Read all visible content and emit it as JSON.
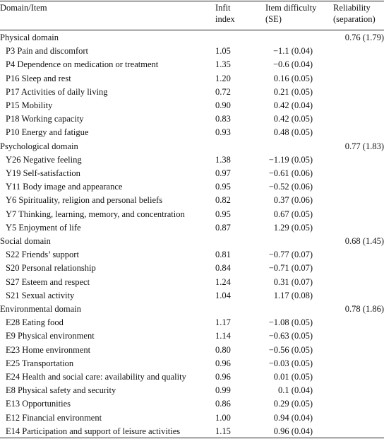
{
  "table": {
    "columns": [
      [
        "Domain/Item"
      ],
      [
        "Infit",
        "index"
      ],
      [
        "Item difficulty",
        "(SE)"
      ],
      [
        "Reliability",
        "(separation)"
      ]
    ],
    "sections": [
      {
        "name": "Physical domain",
        "reliability": "0.76 (1.79)",
        "items": [
          [
            "P3 Pain and discomfort",
            "1.05",
            "−1.1 (0.04)"
          ],
          [
            "P4 Dependence on medication or treatment",
            "1.35",
            "−0.6 (0.04)"
          ],
          [
            "P16 Sleep and rest",
            "1.20",
            "0.16 (0.05)"
          ],
          [
            "P17 Activities of daily living",
            "0.72",
            "0.21 (0.05)"
          ],
          [
            "P15 Mobility",
            "0.90",
            "0.42 (0.04)"
          ],
          [
            "P18 Working capacity",
            "0.83",
            "0.42 (0.05)"
          ],
          [
            "P10 Energy and fatigue",
            "0.93",
            "0.48 (0.05)"
          ]
        ]
      },
      {
        "name": "Psychological domain",
        "reliability": "0.77 (1.83)",
        "items": [
          [
            "Y26 Negative feeling",
            "1.38",
            "−1.19 (0.05)"
          ],
          [
            "Y19 Self-satisfaction",
            "0.97",
            "−0.61 (0.06)"
          ],
          [
            "Y11 Body image and appearance",
            "0.95",
            "−0.52 (0.06)"
          ],
          [
            "Y6 Spirituality, religion and personal beliefs",
            "0.82",
            "0.37 (0.06)"
          ],
          [
            "Y7 Thinking, learning, memory, and concentration",
            "0.95",
            "0.67 (0.05)"
          ],
          [
            "Y5 Enjoyment of life",
            "0.87",
            "1.29 (0.05)"
          ]
        ]
      },
      {
        "name": "Social domain",
        "reliability": "0.68 (1.45)",
        "items": [
          [
            "S22 Friends’ support",
            "0.81",
            "−0.77 (0.07)"
          ],
          [
            "S20 Personal relationship",
            "0.84",
            "−0.71 (0.07)"
          ],
          [
            "S27 Esteem and respect",
            "1.24",
            "0.31 (0.07)"
          ],
          [
            "S21 Sexual activity",
            "1.04",
            "1.17 (0.08)"
          ]
        ]
      },
      {
        "name": "Environmental domain",
        "reliability": "0.78 (1.86)",
        "items": [
          [
            "E28 Eating food",
            "1.17",
            "−1.08 (0.05)"
          ],
          [
            "E9 Physical environment",
            "1.14",
            "−0.63 (0.05)"
          ],
          [
            "E23 Home environment",
            "0.80",
            "−0.56 (0.05)"
          ],
          [
            "E25 Transportation",
            "0.96",
            "−0.03 (0.05)"
          ],
          [
            "E24 Health and social care: availability and quality",
            "0.96",
            "0.01 (0.05)"
          ],
          [
            "E8 Physical safety and security",
            "0.99",
            "0.1 (0.04)"
          ],
          [
            "E13 Opportunities",
            "0.86",
            "0.29 (0.05)"
          ],
          [
            "E12 Financial environment",
            "1.00",
            "0.94 (0.04)"
          ],
          [
            "E14 Participation and support of leisure activities",
            "1.15",
            "0.96 (0.04)"
          ]
        ]
      }
    ]
  }
}
